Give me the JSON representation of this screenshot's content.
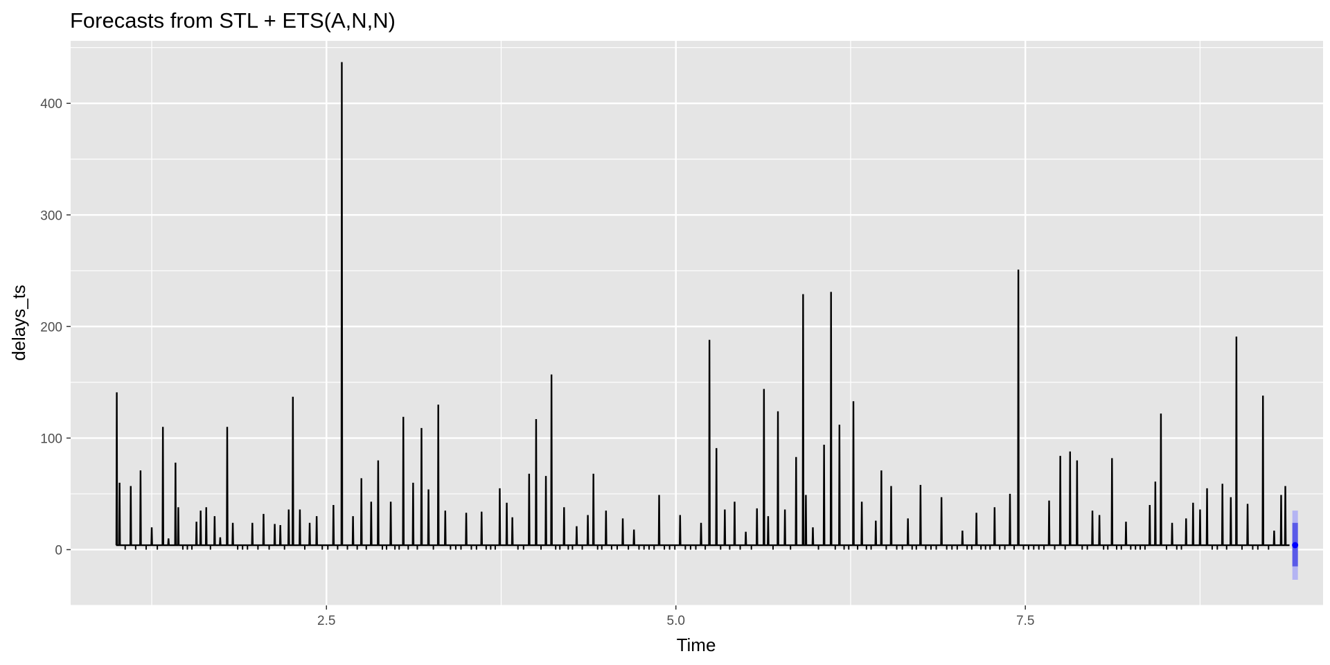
{
  "chart_data": {
    "type": "line",
    "title": "Forecasts from STL +  ETS(A,N,N)",
    "xlabel": "Time",
    "ylabel": "delays_ts",
    "xlim": [
      0.67,
      9.63
    ],
    "ylim": [
      -50,
      456
    ],
    "x_ticks": [
      2.5,
      5.0,
      7.5
    ],
    "x_tick_labels": [
      "2.5",
      "5.0",
      "7.5"
    ],
    "y_ticks": [
      0,
      100,
      200,
      300,
      400
    ],
    "y_tick_labels": [
      "0",
      "100",
      "200",
      "300",
      "400"
    ],
    "grid": true,
    "background": "#e5e5e5",
    "grid_major_color": "#ffffff",
    "line_color": "#000000",
    "baseline": 4,
    "spikes": [
      [
        1.0,
        141
      ],
      [
        1.02,
        60
      ],
      [
        1.1,
        57
      ],
      [
        1.17,
        71
      ],
      [
        1.25,
        20
      ],
      [
        1.33,
        110
      ],
      [
        1.37,
        10
      ],
      [
        1.42,
        78
      ],
      [
        1.44,
        38
      ],
      [
        1.57,
        25
      ],
      [
        1.6,
        35
      ],
      [
        1.64,
        38
      ],
      [
        1.7,
        30
      ],
      [
        1.74,
        11
      ],
      [
        1.79,
        110
      ],
      [
        1.83,
        24
      ],
      [
        1.97,
        24
      ],
      [
        2.05,
        32
      ],
      [
        2.13,
        23
      ],
      [
        2.17,
        22
      ],
      [
        2.23,
        36
      ],
      [
        2.26,
        137
      ],
      [
        2.31,
        36
      ],
      [
        2.38,
        24
      ],
      [
        2.43,
        30
      ],
      [
        2.55,
        40
      ],
      [
        2.61,
        437
      ],
      [
        2.69,
        30
      ],
      [
        2.75,
        64
      ],
      [
        2.82,
        43
      ],
      [
        2.87,
        80
      ],
      [
        2.96,
        43
      ],
      [
        3.05,
        119
      ],
      [
        3.12,
        60
      ],
      [
        3.18,
        109
      ],
      [
        3.23,
        54
      ],
      [
        3.3,
        130
      ],
      [
        3.35,
        35
      ],
      [
        3.5,
        33
      ],
      [
        3.61,
        34
      ],
      [
        3.74,
        55
      ],
      [
        3.79,
        42
      ],
      [
        3.83,
        29
      ],
      [
        3.95,
        68
      ],
      [
        4.0,
        117
      ],
      [
        4.07,
        66
      ],
      [
        4.11,
        157
      ],
      [
        4.2,
        38
      ],
      [
        4.29,
        21
      ],
      [
        4.37,
        31
      ],
      [
        4.41,
        68
      ],
      [
        4.5,
        35
      ],
      [
        4.62,
        28
      ],
      [
        4.7,
        18
      ],
      [
        4.88,
        49
      ],
      [
        5.03,
        31
      ],
      [
        5.18,
        24
      ],
      [
        5.24,
        188
      ],
      [
        5.29,
        91
      ],
      [
        5.35,
        36
      ],
      [
        5.42,
        43
      ],
      [
        5.5,
        16
      ],
      [
        5.58,
        37
      ],
      [
        5.63,
        144
      ],
      [
        5.66,
        30
      ],
      [
        5.73,
        124
      ],
      [
        5.78,
        36
      ],
      [
        5.86,
        83
      ],
      [
        5.91,
        229
      ],
      [
        5.93,
        49
      ],
      [
        5.98,
        20
      ],
      [
        6.06,
        94
      ],
      [
        6.11,
        231
      ],
      [
        6.17,
        112
      ],
      [
        6.27,
        133
      ],
      [
        6.33,
        43
      ],
      [
        6.43,
        26
      ],
      [
        6.47,
        71
      ],
      [
        6.54,
        57
      ],
      [
        6.66,
        28
      ],
      [
        6.75,
        58
      ],
      [
        6.9,
        47
      ],
      [
        7.05,
        17
      ],
      [
        7.15,
        33
      ],
      [
        7.28,
        38
      ],
      [
        7.39,
        50
      ],
      [
        7.45,
        251
      ],
      [
        7.67,
        44
      ],
      [
        7.75,
        84
      ],
      [
        7.82,
        88
      ],
      [
        7.87,
        80
      ],
      [
        7.98,
        35
      ],
      [
        8.03,
        31
      ],
      [
        8.12,
        82
      ],
      [
        8.22,
        25
      ],
      [
        8.39,
        40
      ],
      [
        8.43,
        61
      ],
      [
        8.47,
        122
      ],
      [
        8.55,
        24
      ],
      [
        8.65,
        28
      ],
      [
        8.7,
        42
      ],
      [
        8.75,
        36
      ],
      [
        8.8,
        55
      ],
      [
        8.91,
        59
      ],
      [
        8.97,
        47
      ],
      [
        9.01,
        191
      ],
      [
        9.09,
        41
      ],
      [
        9.2,
        138
      ],
      [
        9.28,
        17
      ],
      [
        9.33,
        49
      ],
      [
        9.36,
        57
      ]
    ],
    "forecast": {
      "x": 9.43,
      "point": 4,
      "lo80": -15,
      "hi80": 24,
      "lo95": -27,
      "hi95": 35,
      "color_80": "#5a5ae8",
      "color_95": "#b4b4f3",
      "point_color": "#0000ff"
    }
  }
}
